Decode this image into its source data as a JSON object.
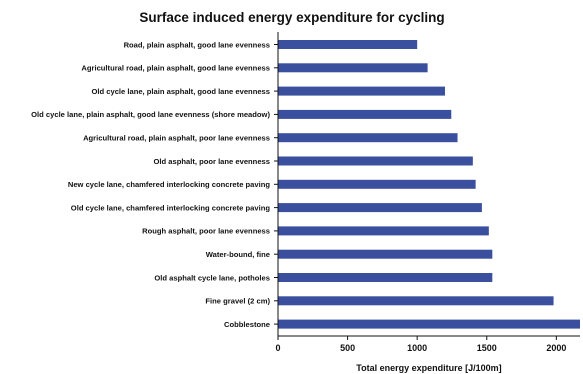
{
  "chart_data": {
    "type": "bar",
    "orientation": "horizontal",
    "title": "Surface induced energy expenditure for cycling",
    "xlabel": "Total energy expenditure  [J/100m]",
    "ylabel": "",
    "xlim": [
      0,
      2170
    ],
    "xticks": [
      0,
      500,
      1000,
      1500,
      2000
    ],
    "grid": false,
    "legend": "none",
    "bar_color": "#3a4f9e",
    "categories": [
      "Road, plain asphalt, good lane evenness",
      "Agricultural road, plain asphalt, good lane evenness",
      "Old cycle lane, plain asphalt, good lane evenness",
      "Old cycle lane, plain asphalt, good lane evenness  (shore meadow)",
      "Agricultural road, plain asphalt, poor lane evenness",
      "Old asphalt, poor lane evenness",
      "New cycle lane, chamfered interlocking concrete paving",
      "Old cycle lane, chamfered interlocking concrete paving",
      "Rough asphalt, poor lane evenness",
      "Water-bound, fine",
      "Old asphalt cycle lane, potholes",
      "Fine gravel (2 cm)",
      "Cobblestone"
    ],
    "values": [
      1000,
      1075,
      1200,
      1245,
      1290,
      1400,
      1420,
      1465,
      1515,
      1540,
      1540,
      1980,
      2170
    ]
  }
}
